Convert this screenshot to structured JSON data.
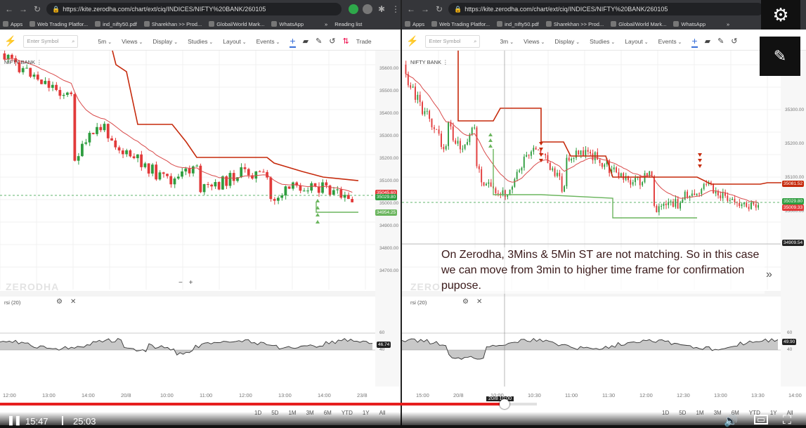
{
  "left": {
    "url": "https://kite.zerodha.com/chart/ext/ciq/INDICES/NIFTY%20BANK/260105",
    "bookmarks": [
      "Apps",
      "Web Trading Platfor...",
      "ind_nifty50.pdf",
      "Sharekhan >> Prod...",
      "Global/World Mark...",
      "WhatsApp"
    ],
    "bookmarks_more": "»",
    "reading_list": "Reading list",
    "search_placeholder": "Enter Symbol",
    "interval": "5m",
    "menus": [
      "Views",
      "Display",
      "Studies",
      "Layout",
      "Events"
    ],
    "trade_label": "Trade",
    "symbol": "NIFTY BANK",
    "price_labels": [
      "35600.00",
      "35500.00",
      "35400.00",
      "35300.00",
      "35200.00",
      "35100.00",
      "35000.00",
      "34900.00",
      "34800.00",
      "34700.00"
    ],
    "tags": {
      "red": "35045.60",
      "green": "35029.80",
      "st": "34954.25"
    },
    "watermark": "ZERODHA",
    "zoom": [
      "−",
      "+"
    ],
    "study": "rsi (20)",
    "rsi_levels": [
      "60",
      "40"
    ],
    "rsi_tag": "46.74",
    "time_labels": [
      "12:00",
      "13:00",
      "14:00",
      "20/8",
      "10:00",
      "11:00",
      "12:00",
      "13:00",
      "14:00",
      "23/8"
    ],
    "ranges": [
      "1D",
      "5D",
      "1M",
      "3M",
      "6M",
      "YTD",
      "1Y",
      "All"
    ]
  },
  "right": {
    "url": "https://kite.zerodha.com/chart/ext/ciq/INDICES/NIFTY%20BANK/260105",
    "bookmarks": [
      "Apps",
      "Web Trading Platfor...",
      "ind_nifty50.pdf",
      "Sharekhan >> Prod...",
      "Global/World Mark...",
      "WhatsApp"
    ],
    "bookmarks_more": "»",
    "search_placeholder": "Enter Symbol",
    "interval": "3m",
    "menus": [
      "Views",
      "Display",
      "Studies",
      "Layout",
      "Events"
    ],
    "symbol": "NIFTY BANK",
    "price_labels": [
      "35300.00",
      "35200.00",
      "35100.00",
      "35000.00",
      "34900.00"
    ],
    "tags": {
      "red": "35081.52",
      "green": "35029.80",
      "red2": "35009.33",
      "cross": "34909.54"
    },
    "watermark": "ZERODHA",
    "study": "rsi (20)",
    "rsi_levels": [
      "60",
      "40"
    ],
    "rsi_tag": "49.90",
    "time_labels": [
      "15:00",
      "20/8",
      "10:00",
      "10:30",
      "11:00",
      "11:30",
      "12:00",
      "12:30",
      "13:00",
      "13:30",
      "14:00"
    ],
    "crosshair_time": "20/8 10:00",
    "ranges": [
      "1D",
      "5D",
      "1M",
      "3M",
      "6M",
      "YTD",
      "1Y",
      "All"
    ]
  },
  "annotation": "On Zerodha, 3Mins & 5Min ST are not matching. So in this case we can move from 3min to higher time frame for confirmation pupose.",
  "player": {
    "current_time": "15:47",
    "duration": "25:03",
    "progress": 0.626,
    "buffered": 0.666,
    "pause_icon": "pause-icon",
    "volume_icon": "volume-icon",
    "captions_icon": "captions-icon",
    "fullscreen_icon": "fullscreen-icon"
  },
  "overlay": {
    "settings_icon": "gear-icon",
    "feedback_icon": "feedback-icon"
  },
  "colors": {
    "up": "#2e9d3f",
    "down": "#e23a3a",
    "supertrend_red": "#c62a0c",
    "supertrend_green": "#6bb55e",
    "ema": "#d94a4a",
    "progress": "#e61e1e"
  }
}
